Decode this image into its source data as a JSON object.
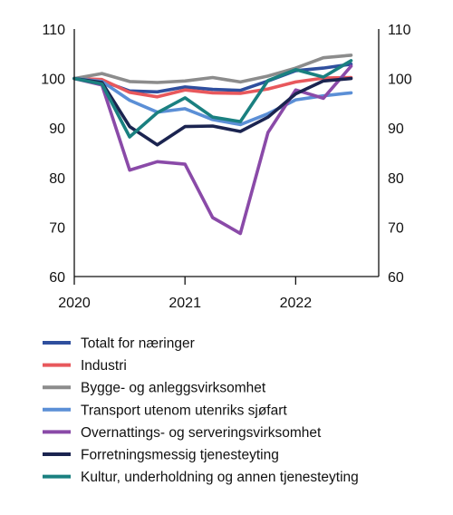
{
  "chart_data": {
    "type": "line",
    "title": "",
    "xlabel": "",
    "ylabel": "",
    "ylim": [
      60,
      110
    ],
    "yticks": [
      60,
      70,
      80,
      90,
      100,
      110
    ],
    "xlim": [
      2020.0,
      2022.75
    ],
    "xticks": [
      "2020",
      "2021",
      "2022"
    ],
    "grid": false,
    "legend_position": "bottom",
    "x": [
      2020.0,
      2020.25,
      2020.5,
      2020.75,
      2021.0,
      2021.25,
      2021.5,
      2021.75,
      2022.0,
      2022.25,
      2022.5
    ],
    "series": [
      {
        "name": "Totalt for næringer",
        "color": "#2f4f9e",
        "values": [
          100,
          99.5,
          97.5,
          97.3,
          98.3,
          97.8,
          97.6,
          99.5,
          101.6,
          102.1,
          102.9
        ]
      },
      {
        "name": "Industri",
        "color": "#e8585c",
        "values": [
          100,
          99.8,
          97.2,
          96.3,
          97.7,
          97.1,
          97.0,
          97.9,
          99.3,
          100.1,
          100.2
        ]
      },
      {
        "name": "Bygge- og anleggsvirksomhet",
        "color": "#8c8c8c",
        "values": [
          100,
          101.0,
          99.4,
          99.2,
          99.5,
          100.2,
          99.3,
          100.5,
          102.1,
          104.2,
          104.7
        ]
      },
      {
        "name": "Transport utenom utenriks sjøfart",
        "color": "#5b8fd6",
        "values": [
          100,
          99.4,
          95.6,
          93.2,
          93.9,
          91.7,
          90.7,
          92.9,
          95.7,
          96.5,
          97.1
        ]
      },
      {
        "name": "Overnattings- og serveringsvirksomhet",
        "color": "#8a4aa8",
        "values": [
          100,
          98.7,
          81.5,
          83.2,
          82.7,
          71.9,
          68.7,
          89.1,
          97.7,
          96.0,
          102.5
        ]
      },
      {
        "name": "Forretningsmessig tjenesteyting",
        "color": "#1b2450",
        "values": [
          100,
          99.2,
          90.3,
          86.6,
          90.3,
          90.4,
          89.3,
          92.2,
          96.9,
          99.5,
          100.0
        ]
      },
      {
        "name": "Kultur, underholdning og annen tjenesteyting",
        "color": "#1a8080",
        "values": [
          100,
          98.9,
          88.2,
          93.1,
          96.1,
          92.2,
          91.3,
          99.6,
          101.8,
          100.3,
          103.6
        ]
      }
    ]
  }
}
